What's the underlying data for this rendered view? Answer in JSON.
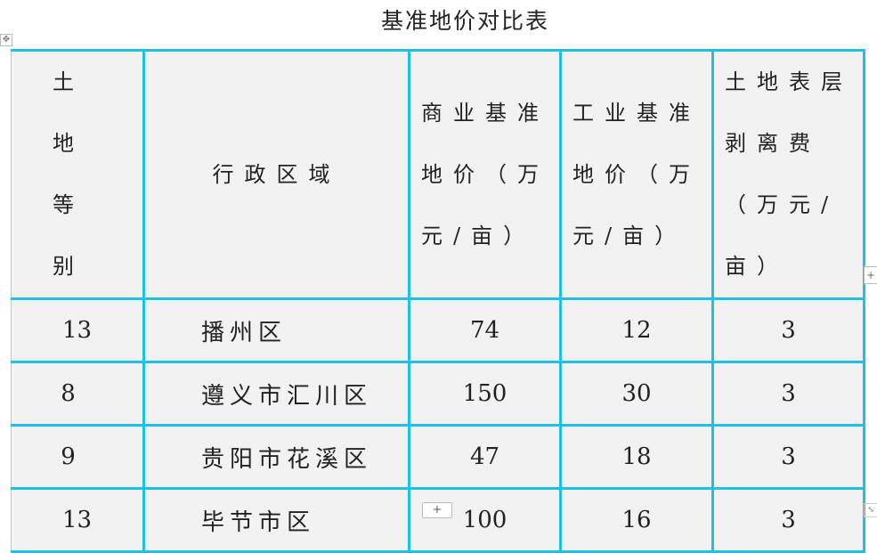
{
  "title": "基准地价对比表",
  "headers": [
    "土地等别",
    "行政区域",
    "商业基准地价（万元/亩）",
    "工业基准地价（万元/亩）",
    "土地表层剥离费（万元/亩）"
  ],
  "rows": [
    {
      "grade": "13",
      "district": "播州区",
      "commercial": "74",
      "industrial": "12",
      "stripping": "3"
    },
    {
      "grade": "8",
      "district": "遵义市汇川区",
      "commercial": "150",
      "industrial": "30",
      "stripping": "3"
    },
    {
      "grade": "9",
      "district": "贵阳市花溪区",
      "commercial": "47",
      "industrial": "18",
      "stripping": "3"
    },
    {
      "grade": "13",
      "district": "毕节市区",
      "commercial": "100",
      "industrial": "16",
      "stripping": "3"
    }
  ],
  "controls": {
    "move_icon": "✥",
    "add_column": "+",
    "add_row": "+",
    "resize_icon": "⤡"
  },
  "colors": {
    "border": "#1ec0e8",
    "cell_bg": "#f2f2f2"
  }
}
